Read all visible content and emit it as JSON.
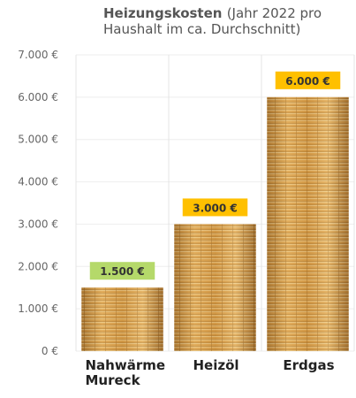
{
  "chart_data": {
    "type": "bar",
    "title": "Heizungskosten",
    "subtitle": "(Jahr 2022 pro Haushalt im ca. Durchschnitt)",
    "categories": [
      "Nahwärme Mureck",
      "Heizöl",
      "Erdgas"
    ],
    "values": [
      1500,
      3000,
      6000
    ],
    "value_labels": [
      "1.500 €",
      "3.000 €",
      "6.000 €"
    ],
    "value_label_colors": [
      "#b5d96a",
      "#ffc000",
      "#ffc000"
    ],
    "ylim": [
      0,
      7000
    ],
    "yticks": [
      {
        "value": 0,
        "label": "0 €"
      },
      {
        "value": 1000,
        "label": "1.000 €"
      },
      {
        "value": 2000,
        "label": "2.000 €"
      },
      {
        "value": 3000,
        "label": "3.000 €"
      },
      {
        "value": 4000,
        "label": "4.000 €"
      },
      {
        "value": 5000,
        "label": "5.000 €"
      },
      {
        "value": 6000,
        "label": "6.000 €"
      },
      {
        "value": 7000,
        "label": "7.000 €"
      }
    ],
    "grid": true
  }
}
